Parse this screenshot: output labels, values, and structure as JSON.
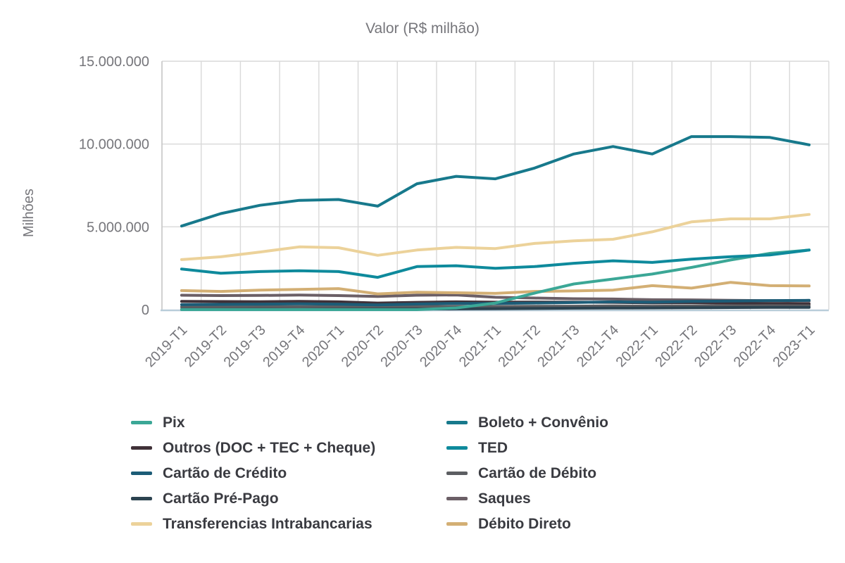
{
  "chart_data": {
    "type": "line",
    "title": "Valor (R$ milhão)",
    "ylabel": "Milhões",
    "xlabel": "",
    "ylim": [
      0,
      15000000
    ],
    "grid": true,
    "legend_position": "bottom",
    "ytick_values": [
      0,
      5000000,
      10000000,
      15000000
    ],
    "ytick_labels": [
      "0",
      "5.000.000",
      "10.000.000",
      "15.000.000"
    ],
    "categories": [
      "2019-T1",
      "2019-T2",
      "2019-T3",
      "2019-T4",
      "2020-T1",
      "2020-T2",
      "2020-T3",
      "2020-T4",
      "2021-T1",
      "2021-T2",
      "2021-T3",
      "2021-T4",
      "2022-T1",
      "2022-T2",
      "2022-T3",
      "2022-T4",
      "2023-T1"
    ],
    "series": [
      {
        "name": "Pix",
        "slug": "pix",
        "color": "#3BA796",
        "values": [
          0,
          0,
          0,
          0,
          0,
          0,
          0,
          100000,
          400000,
          1000000,
          1550000,
          1850000,
          2150000,
          2550000,
          3000000,
          3400000,
          3600000
        ]
      },
      {
        "name": "Boleto + Convênio",
        "slug": "boleto-convenio",
        "color": "#17798C",
        "values": [
          5050000,
          5800000,
          6300000,
          6600000,
          6650000,
          6250000,
          7600000,
          8050000,
          7900000,
          8550000,
          9400000,
          9850000,
          9400000,
          10450000,
          10450000,
          10400000,
          9950000
        ]
      },
      {
        "name": "Outros (DOC + TEC + Cheque)",
        "slug": "outros-doc-tec-cheque",
        "color": "#403138",
        "values": [
          500000,
          490000,
          480000,
          500000,
          470000,
          400000,
          440000,
          470000,
          450000,
          460000,
          450000,
          440000,
          410000,
          420000,
          390000,
          370000,
          350000
        ]
      },
      {
        "name": "TED",
        "slug": "ted",
        "color": "#0E8A9C",
        "values": [
          2450000,
          2200000,
          2300000,
          2350000,
          2300000,
          1950000,
          2600000,
          2650000,
          2500000,
          2600000,
          2800000,
          2950000,
          2850000,
          3050000,
          3200000,
          3300000,
          3600000
        ]
      },
      {
        "name": "Cartão de Crédito",
        "slug": "cartao-de-credito",
        "color": "#1C5C77",
        "values": [
          300000,
          320000,
          330000,
          350000,
          330000,
          290000,
          340000,
          380000,
          370000,
          400000,
          430000,
          470000,
          450000,
          500000,
          520000,
          550000,
          560000
        ]
      },
      {
        "name": "Cartão de Débito",
        "slug": "cartao-de-debito",
        "color": "#5C5E62",
        "values": [
          160000,
          165000,
          170000,
          180000,
          170000,
          155000,
          185000,
          200000,
          190000,
          200000,
          210000,
          225000,
          210000,
          225000,
          230000,
          240000,
          230000
        ]
      },
      {
        "name": "Cartão Pré-Pago",
        "slug": "cartao-pre-pago",
        "color": "#2C4350",
        "values": [
          10000,
          12000,
          15000,
          18000,
          22000,
          28000,
          38000,
          48000,
          58000,
          72000,
          88000,
          100000,
          108000,
          118000,
          128000,
          136000,
          142000
        ]
      },
      {
        "name": "Saques",
        "slug": "saques",
        "color": "#6B5F66",
        "values": [
          870000,
          850000,
          860000,
          880000,
          850000,
          800000,
          870000,
          890000,
          750000,
          700000,
          660000,
          640000,
          600000,
          590000,
          560000,
          540000,
          520000
        ]
      },
      {
        "name": "Transferencias Intrabancarias",
        "slug": "transferencias-intrabancarias",
        "color": "#ECD29A",
        "values": [
          3020000,
          3190000,
          3480000,
          3790000,
          3740000,
          3280000,
          3600000,
          3760000,
          3690000,
          4000000,
          4150000,
          4250000,
          4700000,
          5300000,
          5480000,
          5480000,
          5750000
        ]
      },
      {
        "name": "Débito Direto",
        "slug": "debito-direto",
        "color": "#D3AF74",
        "values": [
          1150000,
          1100000,
          1180000,
          1220000,
          1270000,
          950000,
          1050000,
          1020000,
          980000,
          1100000,
          1130000,
          1180000,
          1450000,
          1300000,
          1650000,
          1450000,
          1430000
        ]
      }
    ],
    "legend_order": [
      "pix",
      "boleto-convenio",
      "outros-doc-tec-cheque",
      "ted",
      "cartao-de-credito",
      "cartao-de-debito",
      "cartao-pre-pago",
      "saques",
      "transferencias-intrabancarias",
      "debito-direto"
    ],
    "draw_order": [
      "outros-doc-tec-cheque",
      "saques",
      "cartao-de-debito",
      "cartao-pre-pago",
      "cartao-de-credito",
      "debito-direto",
      "transferencias-intrabancarias",
      "pix",
      "ted",
      "boleto-convenio"
    ]
  },
  "style_colors": {
    "grid": "#d9d9d9",
    "plot_border": "#c9c9c9",
    "x_axis_line": "#b9cdd9",
    "tick_text": "#76767b",
    "legend_text": "#3a3b41"
  }
}
